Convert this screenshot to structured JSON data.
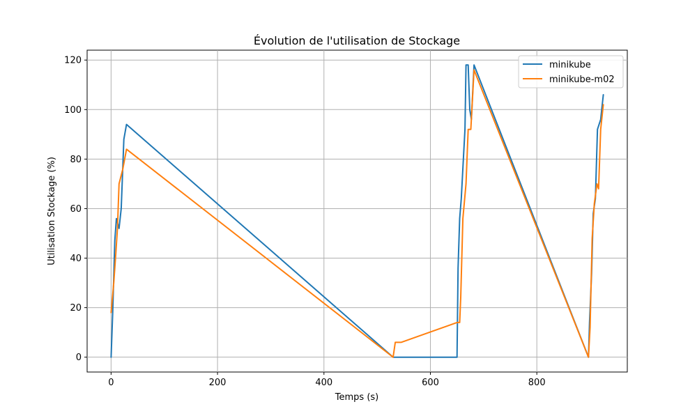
{
  "chart_data": {
    "type": "line",
    "title": "Évolution de l'utilisation de Stockage",
    "xlabel": "Temps (s)",
    "ylabel": "Utilisation Stockage (%)",
    "xlim": [
      -45,
      970
    ],
    "ylim": [
      -6,
      124
    ],
    "xticks": [
      0,
      200,
      400,
      600,
      800
    ],
    "yticks": [
      0,
      20,
      40,
      60,
      80,
      100,
      120
    ],
    "grid": true,
    "legend_position": "top-right",
    "series": [
      {
        "name": "minikube",
        "color": "#1f77b4",
        "points": [
          [
            0,
            0
          ],
          [
            3,
            18
          ],
          [
            7,
            47
          ],
          [
            10,
            56
          ],
          [
            15,
            52
          ],
          [
            19,
            60
          ],
          [
            24,
            88
          ],
          [
            29,
            94
          ],
          [
            530,
            0
          ],
          [
            650,
            0
          ],
          [
            652,
            36
          ],
          [
            655,
            56
          ],
          [
            658,
            64
          ],
          [
            662,
            80
          ],
          [
            665,
            92
          ],
          [
            667,
            118
          ],
          [
            671,
            118
          ],
          [
            674,
            100
          ],
          [
            677,
            96
          ],
          [
            682,
            118
          ],
          [
            897,
            0
          ],
          [
            899,
            14
          ],
          [
            903,
            34
          ],
          [
            906,
            58
          ],
          [
            910,
            64
          ],
          [
            914,
            92
          ],
          [
            920,
            96
          ],
          [
            925,
            106
          ]
        ]
      },
      {
        "name": "minikube-m02",
        "color": "#ff7f0e",
        "points": [
          [
            0,
            18
          ],
          [
            5,
            30
          ],
          [
            9,
            42
          ],
          [
            12,
            52
          ],
          [
            15,
            70
          ],
          [
            22,
            76
          ],
          [
            29,
            84
          ],
          [
            530,
            0
          ],
          [
            534,
            6
          ],
          [
            545,
            6
          ],
          [
            650,
            14
          ],
          [
            655,
            14
          ],
          [
            657,
            24
          ],
          [
            661,
            56
          ],
          [
            667,
            70
          ],
          [
            671,
            92
          ],
          [
            676,
            92
          ],
          [
            682,
            116
          ],
          [
            897,
            0
          ],
          [
            900,
            12
          ],
          [
            904,
            48
          ],
          [
            908,
            62
          ],
          [
            913,
            70
          ],
          [
            916,
            68
          ],
          [
            920,
            92
          ],
          [
            925,
            102
          ]
        ]
      }
    ]
  }
}
